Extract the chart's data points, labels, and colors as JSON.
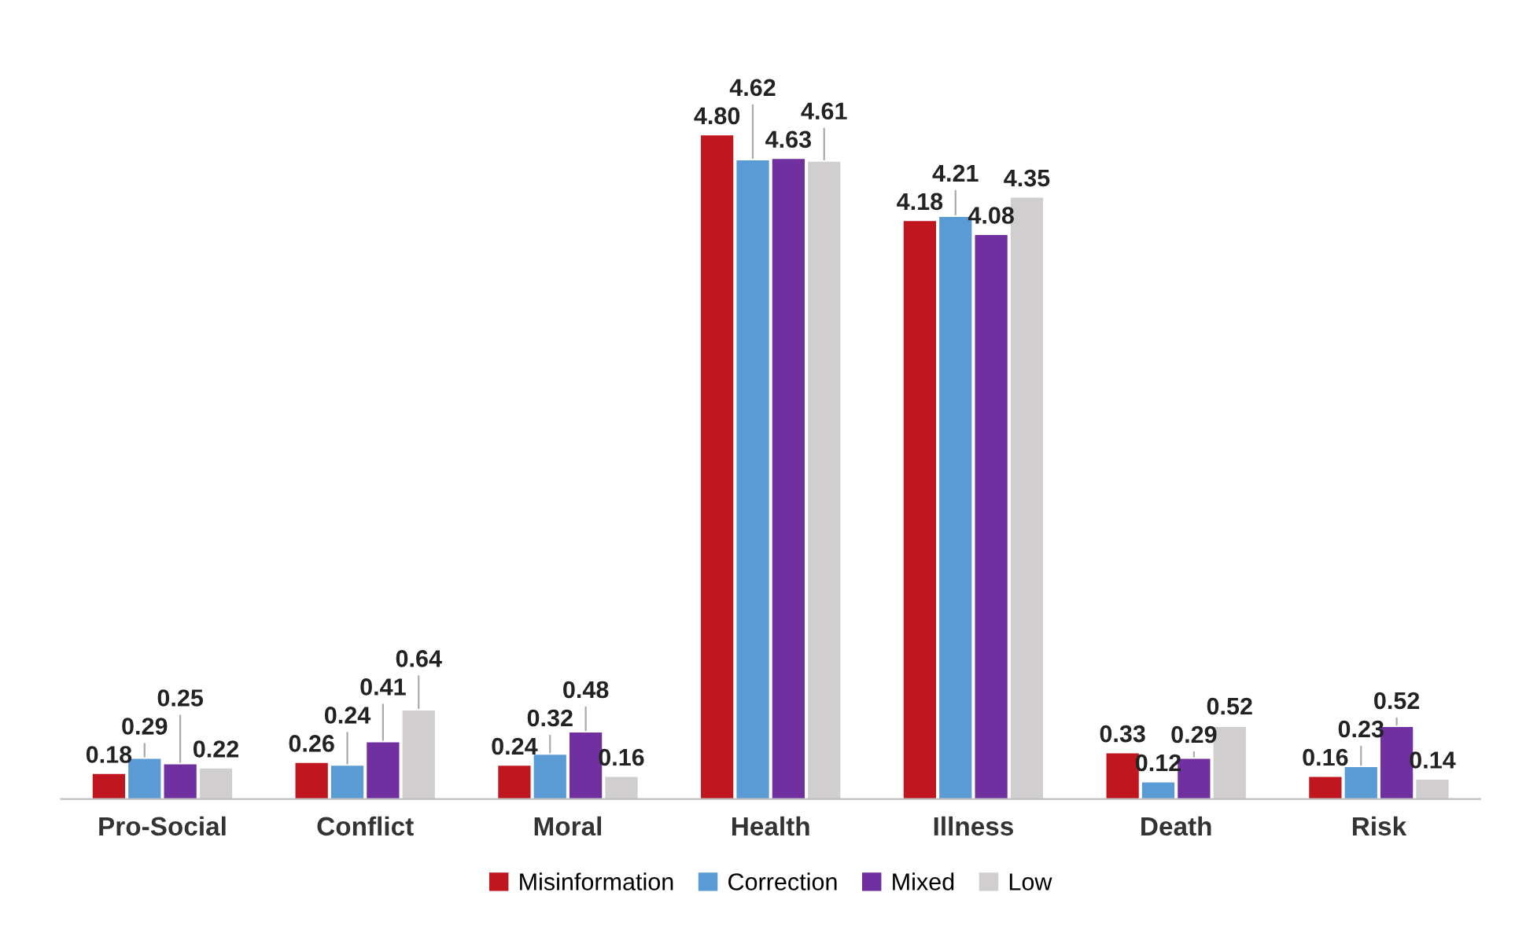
{
  "chart_data": {
    "type": "bar",
    "categories": [
      "Pro-Social",
      "Conflict",
      "Moral",
      "Health",
      "Illness",
      "Death",
      "Risk"
    ],
    "series": [
      {
        "name": "Misinformation",
        "color": "#c0161f",
        "values": [
          0.18,
          0.26,
          0.24,
          4.8,
          4.18,
          0.33,
          0.16
        ],
        "value_labels": [
          "0.18",
          "0.26",
          "0.24",
          "4.80",
          "4.18",
          "0.33",
          "0.16"
        ]
      },
      {
        "name": "Correction",
        "color": "#5b9bd5",
        "values": [
          0.29,
          0.24,
          0.32,
          4.62,
          4.21,
          0.12,
          0.23
        ],
        "value_labels": [
          "0.29",
          "0.24",
          "0.32",
          "4.62",
          "4.21",
          "0.12",
          "0.23"
        ]
      },
      {
        "name": "Mixed",
        "color": "#7030a0",
        "values": [
          0.25,
          0.41,
          0.48,
          4.63,
          4.08,
          0.29,
          0.52
        ],
        "value_labels": [
          "0.25",
          "0.41",
          "0.48",
          "4.63",
          "4.08",
          "0.29",
          "0.52"
        ]
      },
      {
        "name": "Low",
        "color": "#d0cece",
        "values": [
          0.22,
          0.64,
          0.16,
          4.61,
          4.35,
          0.52,
          0.14
        ],
        "value_labels": [
          "0.22",
          "0.64",
          "0.16",
          "4.61",
          "4.35",
          "0.52",
          "0.14"
        ]
      }
    ],
    "legend": "bottom",
    "grid": false
  }
}
